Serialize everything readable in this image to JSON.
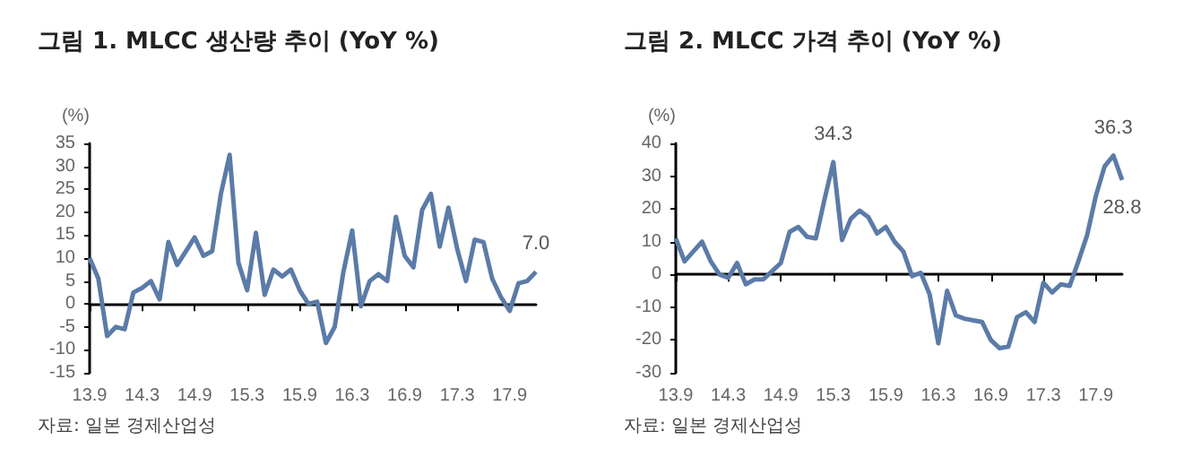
{
  "chart_data": [
    {
      "type": "line",
      "title": "그림 1. MLCC 생산량 추이 (YoY %)",
      "ylabel": "(%)",
      "annotations": [
        "자료: 일본 경제산업성"
      ],
      "categories": [
        "13.9",
        null,
        null,
        null,
        null,
        null,
        "14.3",
        null,
        null,
        null,
        null,
        null,
        "14.9",
        null,
        null,
        null,
        null,
        null,
        "15.3",
        null,
        null,
        null,
        null,
        null,
        "15.9",
        null,
        null,
        null,
        null,
        null,
        "16.3",
        null,
        null,
        null,
        null,
        null,
        "16.9",
        null,
        null,
        null,
        null,
        null,
        "17.3",
        null,
        null,
        null,
        null,
        null,
        "17.9",
        null,
        null,
        null
      ],
      "series": [
        {
          "color": "#5b7ba8",
          "values": [
            10,
            5.5,
            -7,
            -5,
            -5.5,
            2.5,
            3.5,
            5,
            1,
            13.5,
            8.5,
            11.5,
            14.5,
            10.5,
            11.5,
            24,
            32.5,
            9,
            3,
            15.5,
            2,
            7.5,
            6,
            7.5,
            3,
            0,
            0.5,
            -8.5,
            -5,
            7,
            16,
            -0.5,
            5,
            6.5,
            5,
            19,
            10.5,
            8,
            20.5,
            24,
            12.5,
            21,
            12,
            5,
            14,
            13.5,
            5.5,
            1.5,
            -1.5,
            4.5,
            5,
            7.0
          ],
          "value_labels": [
            null,
            null,
            null,
            null,
            null,
            null,
            null,
            null,
            null,
            null,
            null,
            null,
            null,
            null,
            null,
            null,
            null,
            null,
            null,
            null,
            null,
            null,
            null,
            null,
            null,
            null,
            null,
            null,
            null,
            null,
            null,
            null,
            null,
            null,
            null,
            null,
            null,
            null,
            null,
            null,
            null,
            null,
            null,
            null,
            null,
            null,
            null,
            null,
            null,
            null,
            null,
            "7.0"
          ]
        }
      ],
      "ylim": [
        -15,
        35
      ],
      "yticks": [
        -15,
        -10,
        -5,
        0,
        5,
        10,
        15,
        20,
        25,
        30,
        35
      ],
      "marker": "none",
      "line_style": "solid"
    },
    {
      "type": "line",
      "title": "그림 2. MLCC 가격 추이 (YoY %)",
      "ylabel": "(%)",
      "annotations": [
        "자료: 일본 경제산업성"
      ],
      "categories": [
        "13.9",
        null,
        null,
        null,
        null,
        null,
        "14.3",
        null,
        null,
        null,
        null,
        null,
        "14.9",
        null,
        null,
        null,
        null,
        null,
        "15.3",
        null,
        null,
        null,
        null,
        null,
        "15.9",
        null,
        null,
        null,
        null,
        null,
        "16.3",
        null,
        null,
        null,
        null,
        null,
        "16.9",
        null,
        null,
        null,
        null,
        null,
        "17.3",
        null,
        null,
        null,
        null,
        null,
        "17.9",
        null,
        null,
        null
      ],
      "series": [
        {
          "color": "#5b7ba8",
          "values": [
            11,
            4,
            7,
            10,
            4,
            0,
            -1,
            3.5,
            -3,
            -1.5,
            -1.5,
            1,
            3.5,
            13,
            14.5,
            11.5,
            11,
            23,
            34.3,
            10.5,
            17,
            19.5,
            17.5,
            12.5,
            14.5,
            10,
            7,
            -0.5,
            0.5,
            -6,
            -21,
            -5,
            -12.5,
            -13.5,
            -14,
            -14.5,
            -20,
            -22.5,
            -22,
            -13,
            -11.5,
            -14.5,
            -2.5,
            -5.5,
            -3,
            -3.5,
            4,
            12,
            24,
            33,
            36.3,
            28.8
          ],
          "value_labels": [
            null,
            null,
            null,
            null,
            null,
            null,
            null,
            null,
            null,
            null,
            null,
            null,
            null,
            null,
            null,
            null,
            null,
            null,
            "34.3",
            null,
            null,
            null,
            null,
            null,
            null,
            null,
            null,
            null,
            null,
            null,
            null,
            null,
            null,
            null,
            null,
            null,
            null,
            null,
            null,
            null,
            null,
            null,
            null,
            null,
            null,
            null,
            null,
            null,
            null,
            null,
            "36.3",
            "28.8"
          ]
        }
      ],
      "ylim": [
        -30,
        40
      ],
      "yticks": [
        -30,
        -20,
        -10,
        0,
        10,
        20,
        30,
        40
      ],
      "marker": "none",
      "line_style": "solid"
    }
  ]
}
